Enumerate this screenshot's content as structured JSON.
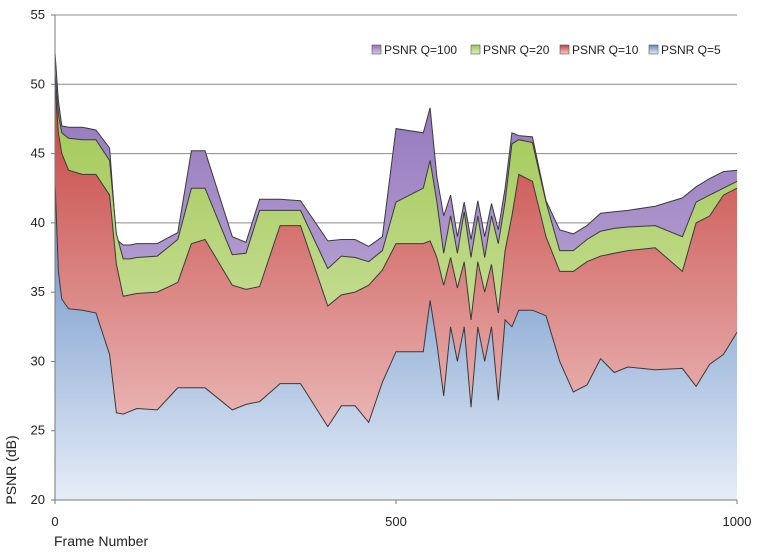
{
  "chart_data": {
    "type": "area",
    "xlabel": "Frame Number",
    "ylabel": "PSNR (dB)",
    "xlim": [
      0,
      1000
    ],
    "ylim": [
      20,
      55
    ],
    "xticks": [
      0,
      500,
      1000
    ],
    "yticks": [
      20,
      25,
      30,
      35,
      40,
      45,
      50,
      55
    ],
    "grid": "horizontal",
    "legend_position": "top-right",
    "x": [
      0,
      5,
      10,
      20,
      40,
      60,
      80,
      90,
      100,
      110,
      120,
      150,
      180,
      200,
      220,
      260,
      280,
      300,
      330,
      360,
      400,
      420,
      440,
      460,
      480,
      500,
      540,
      550,
      560,
      570,
      580,
      590,
      600,
      610,
      620,
      630,
      640,
      650,
      660,
      670,
      680,
      700,
      720,
      740,
      760,
      780,
      800,
      820,
      840,
      880,
      920,
      940,
      960,
      980,
      1000
    ],
    "series": [
      {
        "name": "PSNR Q=5",
        "color": "#6f96cc",
        "values": [
          43.0,
          36.5,
          34.5,
          33.8,
          33.7,
          33.5,
          30.5,
          26.3,
          26.2,
          26.4,
          26.6,
          26.5,
          28.1,
          28.1,
          28.1,
          26.5,
          26.9,
          27.1,
          28.4,
          28.4,
          25.3,
          26.8,
          26.8,
          25.6,
          28.5,
          30.7,
          30.7,
          34.4,
          31.3,
          27.5,
          32.5,
          30.0,
          32.5,
          26.7,
          32.5,
          30.0,
          32.5,
          27.2,
          33.0,
          32.5,
          33.7,
          33.7,
          33.3,
          30.0,
          27.8,
          28.3,
          30.2,
          29.2,
          29.6,
          29.4,
          29.5,
          28.2,
          29.8,
          30.5,
          32.1
        ]
      },
      {
        "name": "PSNR Q=10",
        "color": "#c9504d",
        "values": [
          50.0,
          46.5,
          45.0,
          43.8,
          43.5,
          43.5,
          42.0,
          37.0,
          34.7,
          34.8,
          34.9,
          35.0,
          35.7,
          38.5,
          38.8,
          35.5,
          35.2,
          35.4,
          39.8,
          39.8,
          34.0,
          34.8,
          35.0,
          35.5,
          36.6,
          38.5,
          38.5,
          38.7,
          37.5,
          35.5,
          37.5,
          35.3,
          37.2,
          33.0,
          37.2,
          35.0,
          37.0,
          33.5,
          38.0,
          40.5,
          43.5,
          43.0,
          39.0,
          36.5,
          36.5,
          37.2,
          37.6,
          37.8,
          38.0,
          38.2,
          36.5,
          40.0,
          40.5,
          42.0,
          42.5
        ]
      },
      {
        "name": "PSNR Q=20",
        "color": "#a8cd5c",
        "values": [
          50.8,
          47.8,
          46.5,
          46.1,
          46.0,
          46.0,
          44.5,
          39.2,
          37.4,
          37.4,
          37.5,
          37.6,
          38.8,
          42.5,
          42.5,
          37.7,
          37.8,
          40.9,
          40.9,
          40.9,
          36.7,
          37.6,
          37.5,
          37.2,
          38.0,
          41.5,
          42.5,
          44.5,
          41.5,
          37.8,
          40.5,
          37.8,
          40.8,
          37.5,
          40.5,
          37.5,
          40.5,
          38.5,
          41.5,
          45.7,
          46.0,
          45.8,
          41.5,
          38.0,
          38.0,
          38.8,
          39.4,
          39.6,
          39.7,
          39.8,
          39.0,
          41.5,
          42.0,
          42.5,
          43.0
        ]
      },
      {
        "name": "PSNR Q=100",
        "color": "#9b7fc4",
        "values": [
          52.3,
          48.8,
          47.0,
          46.9,
          46.9,
          46.7,
          45.4,
          38.8,
          38.4,
          38.4,
          38.5,
          38.5,
          39.3,
          45.2,
          45.2,
          39.0,
          38.6,
          41.7,
          41.7,
          41.6,
          38.7,
          38.8,
          38.8,
          38.3,
          39.0,
          46.8,
          46.5,
          48.3,
          43.3,
          40.5,
          42.0,
          39.0,
          41.5,
          38.8,
          41.6,
          39.0,
          41.4,
          39.5,
          42.5,
          46.5,
          46.3,
          46.2,
          41.6,
          39.5,
          39.2,
          39.8,
          40.7,
          40.8,
          40.9,
          41.2,
          41.8,
          42.6,
          43.2,
          43.7,
          43.8
        ]
      }
    ]
  }
}
